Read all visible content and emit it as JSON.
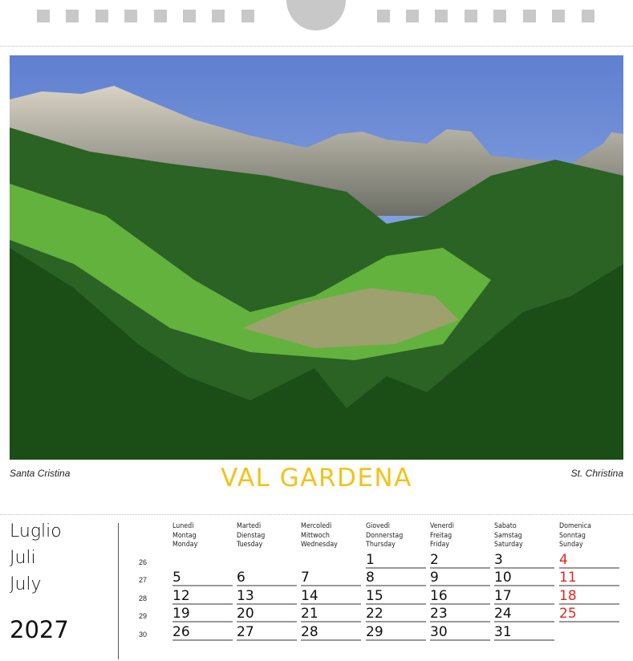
{
  "photo": {
    "caption_left": "Santa Cristina",
    "title": "VAL GARDENA",
    "caption_right": "St. Christina",
    "colors": {
      "sky": "#6f8fd6",
      "mountain": "#9b9a92",
      "forest": "#1f5a1c",
      "meadow": "#5fb33a"
    }
  },
  "calendar": {
    "month_names": [
      "Luglio",
      "Juli",
      "July"
    ],
    "year": "2027",
    "weekday_headers": [
      [
        "Lunedì",
        "Montag",
        "Monday"
      ],
      [
        "Martedì",
        "Dienstag",
        "Tuesday"
      ],
      [
        "Mercoledì",
        "Mittwoch",
        "Wednesday"
      ],
      [
        "Giovedì",
        "Donnerstag",
        "Thursday"
      ],
      [
        "Venerdì",
        "Freitag",
        "Friday"
      ],
      [
        "Sabato",
        "Samstag",
        "Saturday"
      ],
      [
        "Domenica",
        "Sonntag",
        "Sunday"
      ]
    ],
    "weeks": [
      {
        "number": "26",
        "days": [
          null,
          null,
          null,
          "1",
          "2",
          "3",
          "4"
        ]
      },
      {
        "number": "27",
        "days": [
          "5",
          "6",
          "7",
          "8",
          "9",
          "10",
          "11"
        ]
      },
      {
        "number": "28",
        "days": [
          "12",
          "13",
          "14",
          "15",
          "16",
          "17",
          "18"
        ]
      },
      {
        "number": "29",
        "days": [
          "19",
          "20",
          "21",
          "22",
          "23",
          "24",
          "25"
        ]
      },
      {
        "number": "30",
        "days": [
          "26",
          "27",
          "28",
          "29",
          "30",
          "31",
          null
        ]
      }
    ],
    "sunday_color": "#e0281e",
    "title_color": "#f2c21b"
  }
}
